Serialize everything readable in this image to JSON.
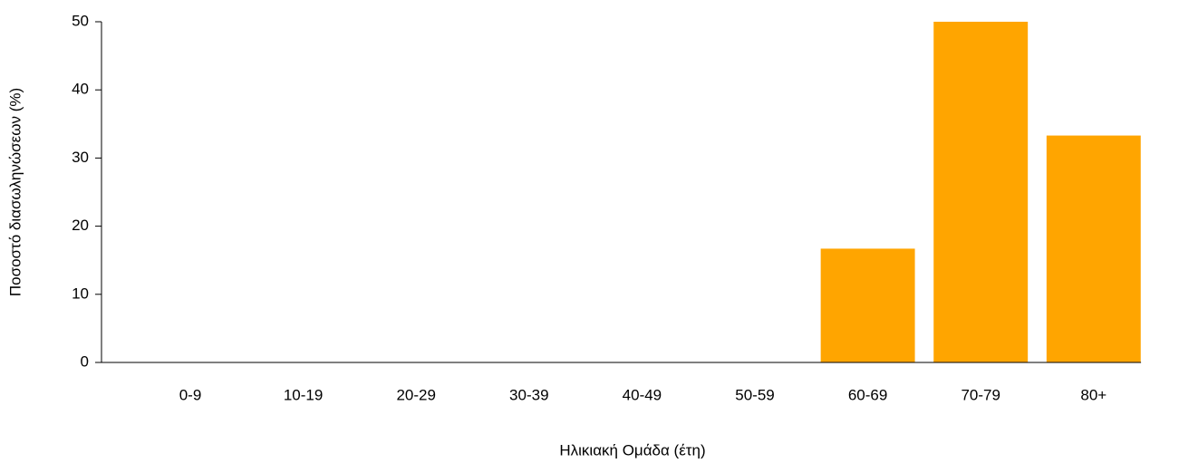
{
  "chart_data": {
    "type": "bar",
    "x_label": "Ηλικιακή Ομάδα (έτη)",
    "y_label": "Ποσοστό διασωληνώσεων (%)",
    "categories": [
      "0-9",
      "10-19",
      "20-29",
      "30-39",
      "40-49",
      "50-59",
      "60-69",
      "70-79",
      "80+"
    ],
    "values": [
      0,
      0,
      0,
      0,
      0,
      0,
      16.7,
      50,
      33.3
    ],
    "color": "#FFA500",
    "ylim": [
      0,
      50
    ],
    "yticks": [
      0,
      10,
      20,
      30,
      40,
      50
    ],
    "grid": false
  }
}
